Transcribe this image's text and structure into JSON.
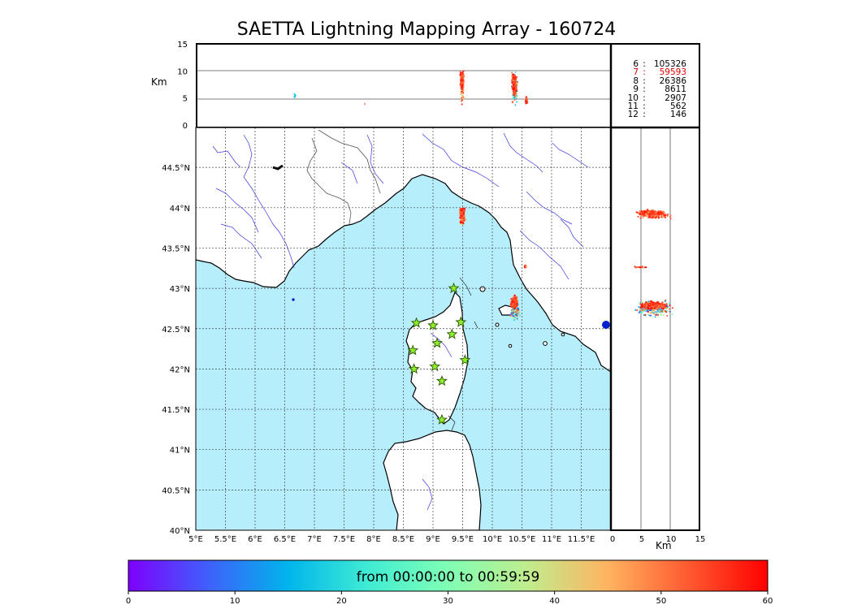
{
  "title": "SAETTA Lightning Mapping Array - 160724",
  "altitude_panel": {
    "ylabel": "Km",
    "yticks": [
      "0",
      "5",
      "10",
      "15"
    ],
    "ylim": [
      0,
      15
    ]
  },
  "side_panel": {
    "xlabel": "Km",
    "xticks": [
      "0",
      "5",
      "10",
      "15"
    ],
    "xlim": [
      0,
      15
    ]
  },
  "map": {
    "lat_labels": [
      "44.5°N",
      "44°N",
      "43.5°N",
      "43°N",
      "42.5°N",
      "42°N",
      "41.5°N",
      "41°N",
      "40.5°N",
      "40°N"
    ],
    "lon_labels": [
      "5°E",
      "5.5°E",
      "6°E",
      "6.5°E",
      "7°E",
      "7.5°E",
      "8°E",
      "8.5°E",
      "9°E",
      "9.5°E",
      "10°E",
      "10.5°E",
      "11°E",
      "11.5°E"
    ],
    "lon_range": [
      5,
      12
    ],
    "lat_range": [
      40,
      45
    ]
  },
  "stations": [
    {
      "lon": 9.35,
      "lat": 43.0
    },
    {
      "lon": 8.72,
      "lat": 42.57
    },
    {
      "lon": 9.0,
      "lat": 42.54
    },
    {
      "lon": 9.47,
      "lat": 42.58
    },
    {
      "lon": 9.32,
      "lat": 42.43
    },
    {
      "lon": 9.07,
      "lat": 42.32
    },
    {
      "lon": 8.66,
      "lat": 42.23
    },
    {
      "lon": 9.54,
      "lat": 42.11
    },
    {
      "lon": 8.68,
      "lat": 42.0
    },
    {
      "lon": 9.03,
      "lat": 42.03
    },
    {
      "lon": 9.15,
      "lat": 41.85
    },
    {
      "lon": 9.15,
      "lat": 41.37
    }
  ],
  "station_counts": [
    {
      "level": "6",
      "count": "105326",
      "color": "#000000"
    },
    {
      "level": "7",
      "count": "59593",
      "color": "#e00000"
    },
    {
      "level": "8",
      "count": "26386",
      "color": "#000000"
    },
    {
      "level": "9",
      "count": "8611",
      "color": "#000000"
    },
    {
      "level": "10",
      "count": "2907",
      "color": "#000000"
    },
    {
      "level": "11",
      "count": "562",
      "color": "#000000"
    },
    {
      "level": "12",
      "count": "146",
      "color": "#000000"
    }
  ],
  "colorbar": {
    "label": "from 00:00:00 to 00:59:59",
    "ticks": [
      "0",
      "10",
      "20",
      "30",
      "40",
      "50",
      "60"
    ],
    "range": [
      0,
      60
    ],
    "colors": [
      "#7f00ff",
      "#3f60fb",
      "#00b5eb",
      "#40ecd4",
      "#80ffb4",
      "#c0ec8d",
      "#ffb360",
      "#ff5a30",
      "#ff0000"
    ]
  },
  "colors": {
    "sea": "#b7eefb",
    "land": "#ffffff",
    "river": "#3535e0"
  }
}
